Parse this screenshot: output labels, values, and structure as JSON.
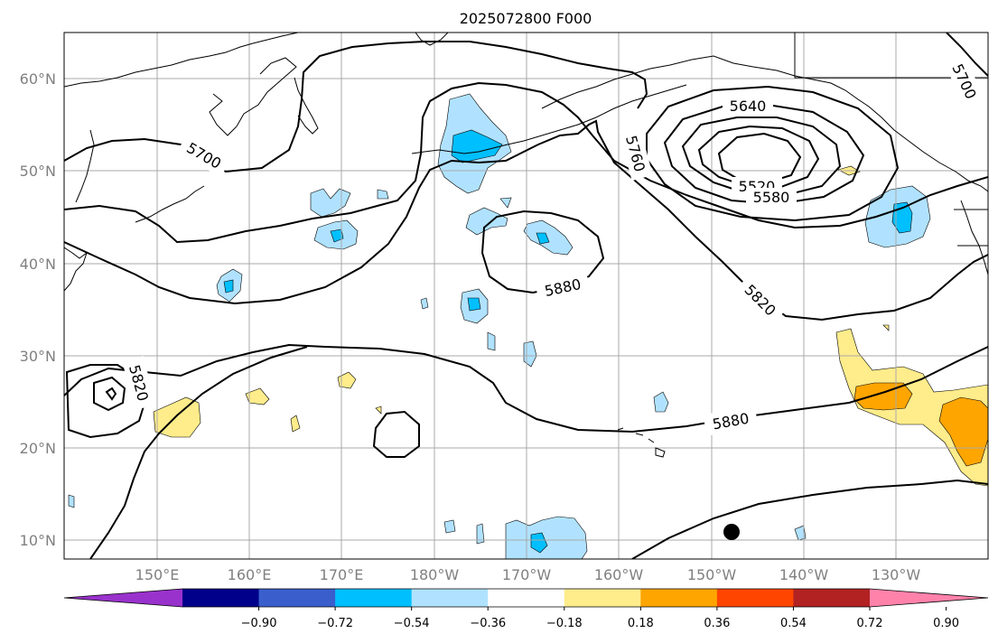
{
  "title": "2025072800 F000",
  "lat_labels": [
    "60°N",
    "50°N",
    "40°N",
    "30°N",
    "20°N",
    "10°N"
  ],
  "lon_labels": [
    "150°E",
    "160°E",
    "170°E",
    "180°W",
    "170°W",
    "160°W",
    "150°W",
    "140°W",
    "130°W"
  ],
  "contour_labels": [
    "5700",
    "5760",
    "5640",
    "5520",
    "5580",
    "5880",
    "5820",
    "5820",
    "5700",
    "5880"
  ],
  "colorbar": {
    "ticks": [
      "−0.90",
      "−0.72",
      "−0.54",
      "−0.36",
      "−0.18",
      "0.18",
      "0.36",
      "0.54",
      "0.72",
      "0.90"
    ],
    "colors": [
      "#9932cc",
      "#00008b",
      "#3a5fcd",
      "#00bfff",
      "#b0e2ff",
      "#ffffff",
      "#ffec8b",
      "#ffa500",
      "#ff4500",
      "#b22222",
      "#ff82ab"
    ]
  }
}
